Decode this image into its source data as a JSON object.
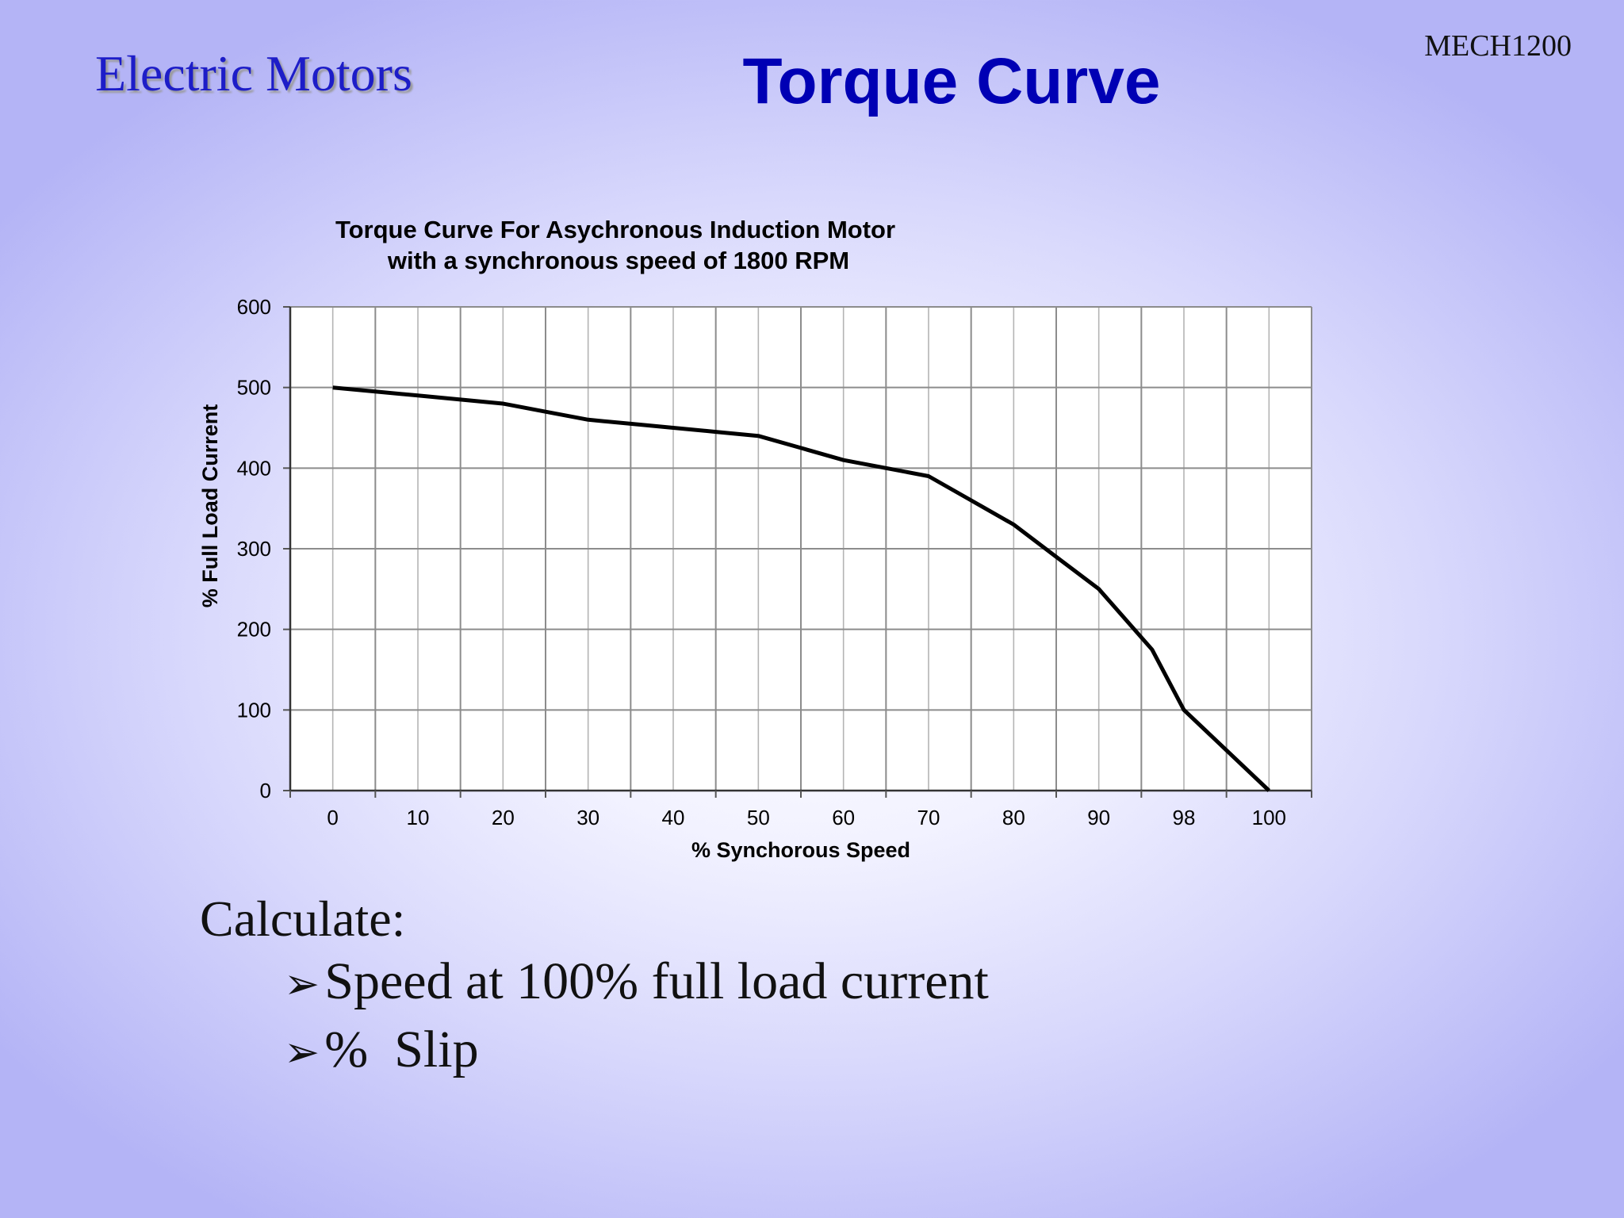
{
  "header": {
    "course_code": "MECH1200",
    "topic": "Electric Motors",
    "slide_title": "Torque Curve"
  },
  "chart_data": {
    "type": "line",
    "title": "Torque Curve For Asychronous Induction Motor",
    "subtitle": "with a synchronous speed of 1800 RPM",
    "xlabel": "% Synchorous Speed",
    "ylabel": "% Full Load Current",
    "categories": [
      "0",
      "10",
      "20",
      "30",
      "40",
      "50",
      "60",
      "70",
      "80",
      "90",
      "98",
      "100"
    ],
    "y_ticks": [
      "0",
      "100",
      "200",
      "300",
      "400",
      "500",
      "600"
    ],
    "ylim": [
      0,
      600
    ],
    "grid": true,
    "x": [
      0,
      5,
      10,
      15,
      20,
      25,
      30,
      35,
      40,
      45,
      50,
      55,
      60,
      65,
      70,
      75,
      80,
      85,
      90,
      95,
      98,
      99,
      100
    ],
    "values": [
      500,
      495,
      490,
      485,
      480,
      470,
      460,
      455,
      450,
      445,
      440,
      425,
      410,
      400,
      390,
      360,
      330,
      290,
      250,
      175,
      100,
      50,
      0
    ],
    "line_color": "#000000"
  },
  "prompt": {
    "heading": "Calculate:",
    "bullet_symbol": "➢",
    "items": [
      "Speed at 100% full load current",
      "%  Slip"
    ]
  }
}
